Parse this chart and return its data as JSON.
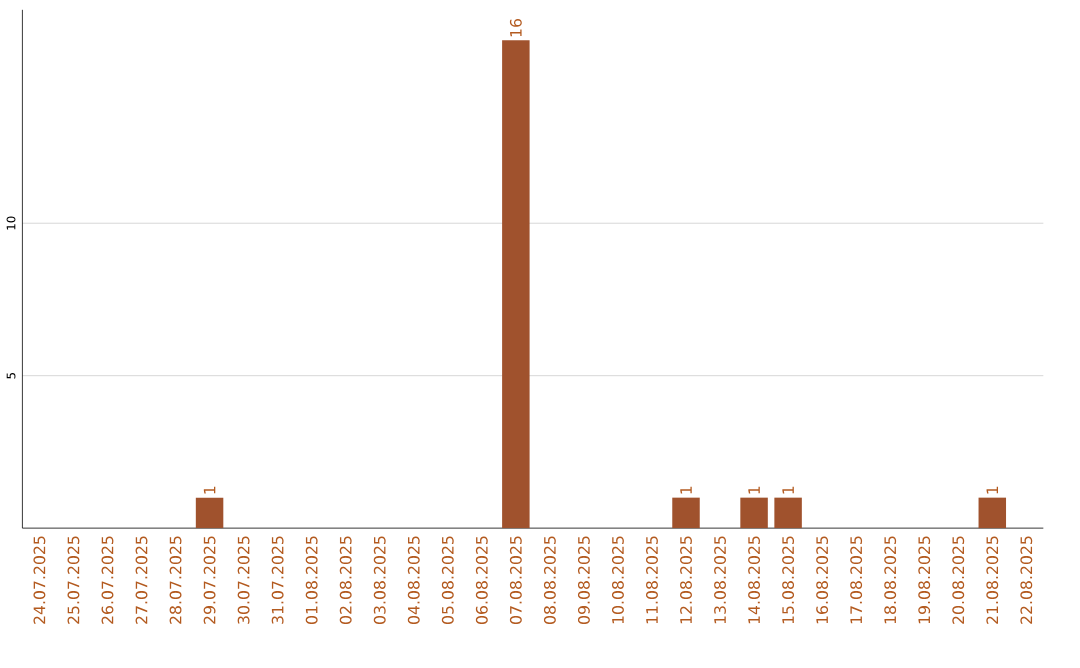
{
  "chart_data": {
    "type": "bar",
    "categories": [
      "24.07.2025",
      "25.07.2025",
      "26.07.2025",
      "27.07.2025",
      "28.07.2025",
      "29.07.2025",
      "30.07.2025",
      "31.07.2025",
      "01.08.2025",
      "02.08.2025",
      "03.08.2025",
      "04.08.2025",
      "05.08.2025",
      "06.08.2025",
      "07.08.2025",
      "08.08.2025",
      "09.08.2025",
      "10.08.2025",
      "11.08.2025",
      "12.08.2025",
      "13.08.2025",
      "14.08.2025",
      "15.08.2025",
      "16.08.2025",
      "17.08.2025",
      "18.08.2025",
      "19.08.2025",
      "20.08.2025",
      "21.08.2025",
      "22.08.2025"
    ],
    "values": [
      0,
      0,
      0,
      0,
      0,
      1,
      0,
      0,
      0,
      0,
      0,
      0,
      0,
      0,
      16,
      0,
      0,
      0,
      0,
      1,
      0,
      1,
      1,
      0,
      0,
      0,
      0,
      0,
      1,
      0
    ],
    "value_labels": [
      null,
      null,
      null,
      null,
      null,
      "1",
      null,
      null,
      null,
      null,
      null,
      null,
      null,
      null,
      "16",
      null,
      null,
      null,
      null,
      "1",
      null,
      "1",
      "1",
      null,
      null,
      null,
      null,
      null,
      "1",
      null
    ],
    "color": "#a0522d",
    "ylim": [
      0,
      17
    ],
    "yticks": [
      5,
      10
    ],
    "grid": "y"
  }
}
